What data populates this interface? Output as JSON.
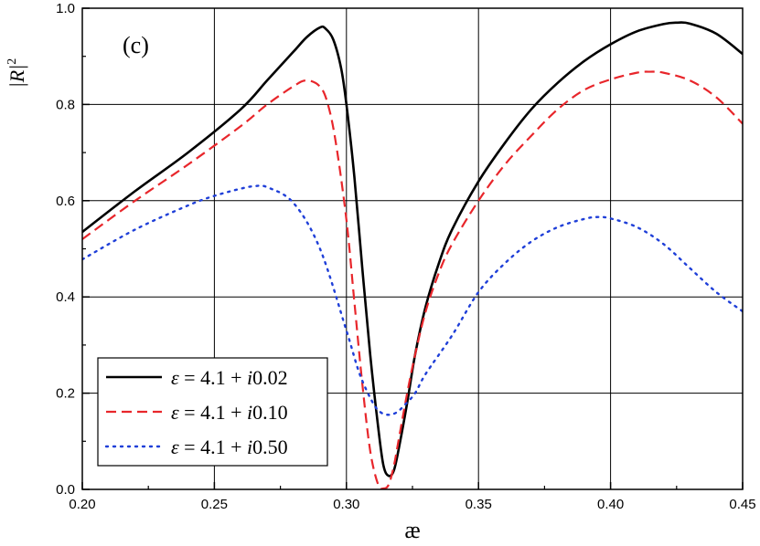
{
  "chart_data": {
    "type": "line",
    "panel_label": "(c)",
    "xlabel": "æ",
    "ylabel": {
      "base": "|R|",
      "exponent": "2"
    },
    "xlim": [
      0.2,
      0.45
    ],
    "ylim": [
      0.0,
      1.0
    ],
    "x_ticks": [
      0.2,
      0.25,
      0.3,
      0.35,
      0.4,
      0.45
    ],
    "x_tick_labels": [
      "0.20",
      "0.25",
      "0.30",
      "0.35",
      "0.40",
      "0.45"
    ],
    "y_ticks": [
      0.0,
      0.2,
      0.4,
      0.6,
      0.8,
      1.0
    ],
    "y_tick_labels": [
      "0.0",
      "0.2",
      "0.4",
      "0.6",
      "0.8",
      "1.0"
    ],
    "grid": true,
    "legend_position": "bottom-left",
    "series": [
      {
        "name": {
          "prefix": "ε = 4.1 + ",
          "imag": "i",
          "value": "0.02"
        },
        "color": "#000000",
        "dash": "solid",
        "x": [
          0.2,
          0.22,
          0.24,
          0.26,
          0.27,
          0.28,
          0.285,
          0.29,
          0.292,
          0.295,
          0.298,
          0.3,
          0.303,
          0.306,
          0.309,
          0.312,
          0.314,
          0.316,
          0.318,
          0.32,
          0.323,
          0.326,
          0.33,
          0.335,
          0.34,
          0.35,
          0.36,
          0.37,
          0.38,
          0.39,
          0.4,
          0.41,
          0.42,
          0.425,
          0.43,
          0.44,
          0.45
        ],
        "y": [
          0.535,
          0.62,
          0.7,
          0.79,
          0.85,
          0.91,
          0.94,
          0.96,
          0.958,
          0.935,
          0.875,
          0.8,
          0.65,
          0.46,
          0.28,
          0.13,
          0.05,
          0.028,
          0.04,
          0.09,
          0.18,
          0.28,
          0.38,
          0.47,
          0.54,
          0.64,
          0.72,
          0.79,
          0.845,
          0.89,
          0.925,
          0.952,
          0.967,
          0.97,
          0.968,
          0.947,
          0.905
        ]
      },
      {
        "name": {
          "prefix": "ε = 4.1 + ",
          "imag": "i",
          "value": "0.10"
        },
        "color": "#e8262b",
        "dash": "dashed",
        "x": [
          0.2,
          0.22,
          0.24,
          0.26,
          0.27,
          0.28,
          0.285,
          0.29,
          0.293,
          0.296,
          0.3,
          0.303,
          0.306,
          0.309,
          0.312,
          0.314,
          0.316,
          0.318,
          0.32,
          0.323,
          0.326,
          0.33,
          0.335,
          0.34,
          0.35,
          0.36,
          0.37,
          0.38,
          0.39,
          0.4,
          0.41,
          0.415,
          0.42,
          0.43,
          0.44,
          0.45
        ],
        "y": [
          0.52,
          0.6,
          0.675,
          0.755,
          0.8,
          0.838,
          0.85,
          0.837,
          0.8,
          0.72,
          0.56,
          0.39,
          0.22,
          0.08,
          0.01,
          0.002,
          0.01,
          0.05,
          0.11,
          0.2,
          0.28,
          0.37,
          0.45,
          0.51,
          0.6,
          0.675,
          0.735,
          0.79,
          0.83,
          0.852,
          0.866,
          0.868,
          0.866,
          0.85,
          0.815,
          0.76
        ]
      },
      {
        "name": {
          "prefix": "ε = 4.1 + ",
          "imag": "i",
          "value": "0.50"
        },
        "color": "#1f3fd8",
        "dash": "dotted",
        "x": [
          0.2,
          0.22,
          0.24,
          0.25,
          0.26,
          0.265,
          0.27,
          0.28,
          0.29,
          0.3,
          0.305,
          0.31,
          0.313,
          0.316,
          0.319,
          0.322,
          0.326,
          0.33,
          0.34,
          0.35,
          0.36,
          0.37,
          0.38,
          0.39,
          0.395,
          0.4,
          0.41,
          0.42,
          0.43,
          0.44,
          0.45
        ],
        "y": [
          0.478,
          0.54,
          0.59,
          0.61,
          0.625,
          0.63,
          0.628,
          0.595,
          0.5,
          0.33,
          0.24,
          0.18,
          0.16,
          0.155,
          0.16,
          0.175,
          0.2,
          0.24,
          0.32,
          0.41,
          0.47,
          0.515,
          0.545,
          0.562,
          0.566,
          0.563,
          0.545,
          0.51,
          0.46,
          0.41,
          0.37
        ]
      }
    ]
  }
}
